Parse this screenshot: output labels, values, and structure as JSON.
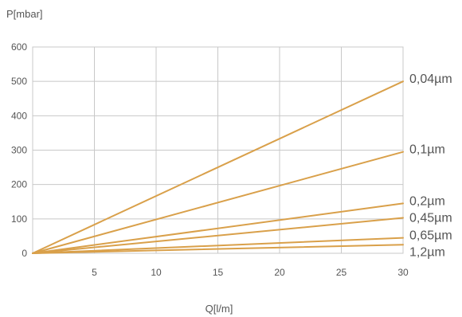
{
  "chart_data": {
    "type": "line",
    "ylabel": "P[mbar]",
    "xlabel": "Q[l/m]",
    "xlim": [
      0,
      30
    ],
    "ylim": [
      0,
      600
    ],
    "x_ticks": [
      5,
      10,
      15,
      20,
      25,
      30
    ],
    "y_ticks": [
      0,
      100,
      200,
      300,
      400,
      500,
      600
    ],
    "grid": true,
    "legend": "none",
    "line_color": "#D9A04A",
    "series": [
      {
        "name": "0,04µm",
        "x": [
          0,
          30
        ],
        "y": [
          0,
          500
        ]
      },
      {
        "name": "0,1µm",
        "x": [
          0,
          30
        ],
        "y": [
          0,
          295
        ]
      },
      {
        "name": "0,2µm",
        "x": [
          0,
          30
        ],
        "y": [
          0,
          145
        ]
      },
      {
        "name": "0,45µm",
        "x": [
          0,
          30
        ],
        "y": [
          0,
          103
        ]
      },
      {
        "name": "0,65µm",
        "x": [
          0,
          30
        ],
        "y": [
          0,
          45
        ]
      },
      {
        "name": "1,2µm",
        "x": [
          0,
          30
        ],
        "y": [
          0,
          25
        ]
      }
    ]
  }
}
